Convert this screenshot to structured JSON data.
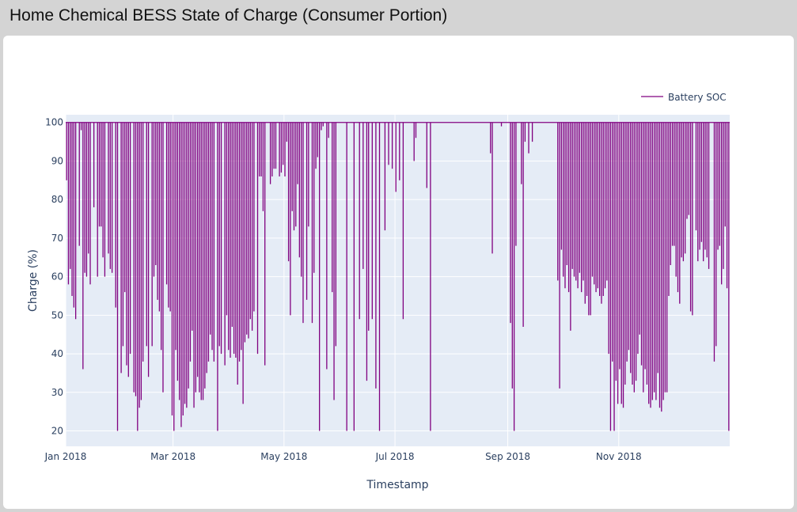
{
  "panel": {
    "title": "Home Chemical BESS State of Charge (Consumer Portion)"
  },
  "colors": {
    "series": "#800080",
    "plot_bg": "#e5ecf6",
    "grid": "#ffffff",
    "text": "#2a3f5f",
    "page_bg": "#d4d4d4"
  },
  "chart_data": {
    "type": "line",
    "xlabel": "Timestamp",
    "ylabel": "Charge (%)",
    "x_range": [
      "2018-01-01",
      "2018-12-31"
    ],
    "ylim": [
      16,
      102
    ],
    "x_ticks": [
      {
        "date": "2018-01-01",
        "label": "Jan 2018"
      },
      {
        "date": "2018-03-01",
        "label": "Mar 2018"
      },
      {
        "date": "2018-05-01",
        "label": "May 2018"
      },
      {
        "date": "2018-07-01",
        "label": "Jul 2018"
      },
      {
        "date": "2018-09-01",
        "label": "Sep 2018"
      },
      {
        "date": "2018-11-01",
        "label": "Nov 2018"
      }
    ],
    "y_ticks": [
      20,
      30,
      40,
      50,
      60,
      70,
      80,
      90,
      100
    ],
    "grid": true,
    "legend_position": "top-right",
    "series": [
      {
        "name": "Battery SOC",
        "baseline": 100,
        "dips": [
          [
            "2018-01-01",
            85
          ],
          [
            "2018-01-02",
            58
          ],
          [
            "2018-01-03",
            62
          ],
          [
            "2018-01-04",
            55
          ],
          [
            "2018-01-05",
            52
          ],
          [
            "2018-01-06",
            49
          ],
          [
            "2018-01-08",
            68
          ],
          [
            "2018-01-09",
            98
          ],
          [
            "2018-01-10",
            36
          ],
          [
            "2018-01-11",
            61
          ],
          [
            "2018-01-12",
            60
          ],
          [
            "2018-01-13",
            66
          ],
          [
            "2018-01-14",
            58
          ],
          [
            "2018-01-16",
            78
          ],
          [
            "2018-01-18",
            60
          ],
          [
            "2018-01-19",
            73
          ],
          [
            "2018-01-20",
            73
          ],
          [
            "2018-01-21",
            65
          ],
          [
            "2018-01-22",
            60
          ],
          [
            "2018-01-24",
            66
          ],
          [
            "2018-01-25",
            62
          ],
          [
            "2018-01-26",
            61
          ],
          [
            "2018-01-28",
            52
          ],
          [
            "2018-01-29",
            20
          ],
          [
            "2018-01-31",
            35
          ],
          [
            "2018-02-01",
            42
          ],
          [
            "2018-02-02",
            56
          ],
          [
            "2018-02-03",
            37
          ],
          [
            "2018-02-04",
            34
          ],
          [
            "2018-02-05",
            40
          ],
          [
            "2018-02-07",
            30
          ],
          [
            "2018-02-08",
            29
          ],
          [
            "2018-02-09",
            20
          ],
          [
            "2018-02-10",
            26
          ],
          [
            "2018-02-11",
            28
          ],
          [
            "2018-02-12",
            38
          ],
          [
            "2018-02-14",
            42
          ],
          [
            "2018-02-15",
            34
          ],
          [
            "2018-02-17",
            42
          ],
          [
            "2018-02-18",
            60
          ],
          [
            "2018-02-19",
            63
          ],
          [
            "2018-02-20",
            54
          ],
          [
            "2018-02-21",
            51
          ],
          [
            "2018-02-22",
            41
          ],
          [
            "2018-02-23",
            30
          ],
          [
            "2018-02-25",
            58
          ],
          [
            "2018-02-26",
            52
          ],
          [
            "2018-02-27",
            51
          ],
          [
            "2018-02-28",
            24
          ],
          [
            "2018-03-01",
            20
          ],
          [
            "2018-03-02",
            41
          ],
          [
            "2018-03-03",
            33
          ],
          [
            "2018-03-04",
            28
          ],
          [
            "2018-03-05",
            21
          ],
          [
            "2018-03-06",
            24
          ],
          [
            "2018-03-07",
            27
          ],
          [
            "2018-03-08",
            26
          ],
          [
            "2018-03-09",
            31
          ],
          [
            "2018-03-10",
            38
          ],
          [
            "2018-03-11",
            46
          ],
          [
            "2018-03-12",
            26
          ],
          [
            "2018-03-13",
            30
          ],
          [
            "2018-03-14",
            34
          ],
          [
            "2018-03-15",
            30
          ],
          [
            "2018-03-16",
            28
          ],
          [
            "2018-03-17",
            28
          ],
          [
            "2018-03-18",
            31
          ],
          [
            "2018-03-19",
            35
          ],
          [
            "2018-03-20",
            38
          ],
          [
            "2018-03-21",
            45
          ],
          [
            "2018-03-22",
            41
          ],
          [
            "2018-03-23",
            38
          ],
          [
            "2018-03-25",
            20
          ],
          [
            "2018-03-26",
            42
          ],
          [
            "2018-03-27",
            40
          ],
          [
            "2018-03-29",
            37
          ],
          [
            "2018-03-30",
            50
          ],
          [
            "2018-03-31",
            41
          ],
          [
            "2018-04-01",
            39
          ],
          [
            "2018-04-02",
            47
          ],
          [
            "2018-04-03",
            40
          ],
          [
            "2018-04-04",
            39
          ],
          [
            "2018-04-05",
            32
          ],
          [
            "2018-04-06",
            38
          ],
          [
            "2018-04-07",
            41
          ],
          [
            "2018-04-08",
            27
          ],
          [
            "2018-04-09",
            43
          ],
          [
            "2018-04-10",
            45
          ],
          [
            "2018-04-11",
            44
          ],
          [
            "2018-04-12",
            49
          ],
          [
            "2018-04-13",
            46
          ],
          [
            "2018-04-14",
            51
          ],
          [
            "2018-04-16",
            40
          ],
          [
            "2018-04-17",
            86
          ],
          [
            "2018-04-18",
            86
          ],
          [
            "2018-04-19",
            77
          ],
          [
            "2018-04-20",
            37
          ],
          [
            "2018-04-23",
            84
          ],
          [
            "2018-04-24",
            86
          ],
          [
            "2018-04-25",
            88
          ],
          [
            "2018-04-26",
            88
          ],
          [
            "2018-04-28",
            86
          ],
          [
            "2018-04-29",
            87
          ],
          [
            "2018-04-30",
            89
          ],
          [
            "2018-05-01",
            86
          ],
          [
            "2018-05-02",
            95
          ],
          [
            "2018-05-03",
            64
          ],
          [
            "2018-05-04",
            50
          ],
          [
            "2018-05-05",
            77
          ],
          [
            "2018-05-06",
            72
          ],
          [
            "2018-05-07",
            73
          ],
          [
            "2018-05-08",
            84
          ],
          [
            "2018-05-09",
            65
          ],
          [
            "2018-05-10",
            60
          ],
          [
            "2018-05-11",
            48
          ],
          [
            "2018-05-13",
            54
          ],
          [
            "2018-05-14",
            73
          ],
          [
            "2018-05-16",
            48
          ],
          [
            "2018-05-17",
            61
          ],
          [
            "2018-05-18",
            88
          ],
          [
            "2018-05-19",
            91
          ],
          [
            "2018-05-20",
            20
          ],
          [
            "2018-05-21",
            98
          ],
          [
            "2018-05-22",
            99
          ],
          [
            "2018-05-24",
            36
          ],
          [
            "2018-05-25",
            96
          ],
          [
            "2018-05-27",
            56
          ],
          [
            "2018-05-28",
            28
          ],
          [
            "2018-05-29",
            42
          ],
          [
            "2018-06-04",
            20
          ],
          [
            "2018-06-08",
            20
          ],
          [
            "2018-06-11",
            49
          ],
          [
            "2018-06-13",
            62
          ],
          [
            "2018-06-15",
            33
          ],
          [
            "2018-06-16",
            46
          ],
          [
            "2018-06-18",
            49
          ],
          [
            "2018-06-20",
            31
          ],
          [
            "2018-06-22",
            20
          ],
          [
            "2018-06-25",
            72
          ],
          [
            "2018-06-27",
            89
          ],
          [
            "2018-06-29",
            88
          ],
          [
            "2018-07-01",
            82
          ],
          [
            "2018-07-03",
            85
          ],
          [
            "2018-07-05",
            49
          ],
          [
            "2018-07-11",
            90
          ],
          [
            "2018-07-12",
            96
          ],
          [
            "2018-07-18",
            83
          ],
          [
            "2018-07-20",
            20
          ],
          [
            "2018-08-22",
            92
          ],
          [
            "2018-08-23",
            66
          ],
          [
            "2018-08-28",
            99
          ],
          [
            "2018-09-02",
            48
          ],
          [
            "2018-09-03",
            31
          ],
          [
            "2018-09-04",
            20
          ],
          [
            "2018-09-05",
            68
          ],
          [
            "2018-09-08",
            84
          ],
          [
            "2018-09-09",
            47
          ],
          [
            "2018-09-10",
            95
          ],
          [
            "2018-09-12",
            92
          ],
          [
            "2018-09-14",
            95
          ],
          [
            "2018-09-28",
            59
          ],
          [
            "2018-09-29",
            31
          ],
          [
            "2018-09-30",
            67
          ],
          [
            "2018-10-01",
            60
          ],
          [
            "2018-10-02",
            57
          ],
          [
            "2018-10-03",
            63
          ],
          [
            "2018-10-04",
            56
          ],
          [
            "2018-10-05",
            46
          ],
          [
            "2018-10-06",
            62
          ],
          [
            "2018-10-07",
            60
          ],
          [
            "2018-10-08",
            59
          ],
          [
            "2018-10-09",
            57
          ],
          [
            "2018-10-10",
            61
          ],
          [
            "2018-10-11",
            56
          ],
          [
            "2018-10-12",
            59
          ],
          [
            "2018-10-13",
            53
          ],
          [
            "2018-10-14",
            55
          ],
          [
            "2018-10-15",
            50
          ],
          [
            "2018-10-16",
            50
          ],
          [
            "2018-10-17",
            60
          ],
          [
            "2018-10-18",
            58
          ],
          [
            "2018-10-19",
            56
          ],
          [
            "2018-10-20",
            57
          ],
          [
            "2018-10-21",
            55
          ],
          [
            "2018-10-22",
            53
          ],
          [
            "2018-10-23",
            55
          ],
          [
            "2018-10-24",
            57
          ],
          [
            "2018-10-25",
            59
          ],
          [
            "2018-10-26",
            40
          ],
          [
            "2018-10-27",
            20
          ],
          [
            "2018-10-28",
            38
          ],
          [
            "2018-10-29",
            20
          ],
          [
            "2018-10-30",
            33
          ],
          [
            "2018-10-31",
            27
          ],
          [
            "2018-11-01",
            36
          ],
          [
            "2018-11-02",
            27
          ],
          [
            "2018-11-03",
            26
          ],
          [
            "2018-11-04",
            32
          ],
          [
            "2018-11-05",
            38
          ],
          [
            "2018-11-06",
            41
          ],
          [
            "2018-11-07",
            35
          ],
          [
            "2018-11-08",
            32
          ],
          [
            "2018-11-09",
            30
          ],
          [
            "2018-11-10",
            33
          ],
          [
            "2018-11-11",
            40
          ],
          [
            "2018-11-12",
            45
          ],
          [
            "2018-11-13",
            37
          ],
          [
            "2018-11-14",
            30
          ],
          [
            "2018-11-15",
            36
          ],
          [
            "2018-11-16",
            32
          ],
          [
            "2018-11-17",
            27
          ],
          [
            "2018-11-18",
            26
          ],
          [
            "2018-11-19",
            28
          ],
          [
            "2018-11-20",
            30
          ],
          [
            "2018-11-21",
            28
          ],
          [
            "2018-11-22",
            35
          ],
          [
            "2018-11-23",
            26
          ],
          [
            "2018-11-24",
            25
          ],
          [
            "2018-11-25",
            28
          ],
          [
            "2018-11-26",
            30
          ],
          [
            "2018-11-27",
            30
          ],
          [
            "2018-11-28",
            55
          ],
          [
            "2018-11-29",
            63
          ],
          [
            "2018-11-30",
            68
          ],
          [
            "2018-12-01",
            68
          ],
          [
            "2018-12-02",
            60
          ],
          [
            "2018-12-03",
            56
          ],
          [
            "2018-12-04",
            53
          ],
          [
            "2018-12-05",
            65
          ],
          [
            "2018-12-06",
            64
          ],
          [
            "2018-12-07",
            66
          ],
          [
            "2018-12-08",
            75
          ],
          [
            "2018-12-09",
            76
          ],
          [
            "2018-12-10",
            51
          ],
          [
            "2018-12-11",
            50
          ],
          [
            "2018-12-13",
            72
          ],
          [
            "2018-12-14",
            64
          ],
          [
            "2018-12-15",
            67
          ],
          [
            "2018-12-16",
            69
          ],
          [
            "2018-12-17",
            64
          ],
          [
            "2018-12-18",
            67
          ],
          [
            "2018-12-19",
            65
          ],
          [
            "2018-12-20",
            62
          ],
          [
            "2018-12-23",
            38
          ],
          [
            "2018-12-24",
            42
          ],
          [
            "2018-12-25",
            67
          ],
          [
            "2018-12-26",
            68
          ],
          [
            "2018-12-27",
            58
          ],
          [
            "2018-12-28",
            62
          ],
          [
            "2018-12-29",
            73
          ],
          [
            "2018-12-30",
            57
          ],
          [
            "2018-12-31",
            20
          ]
        ]
      }
    ]
  }
}
